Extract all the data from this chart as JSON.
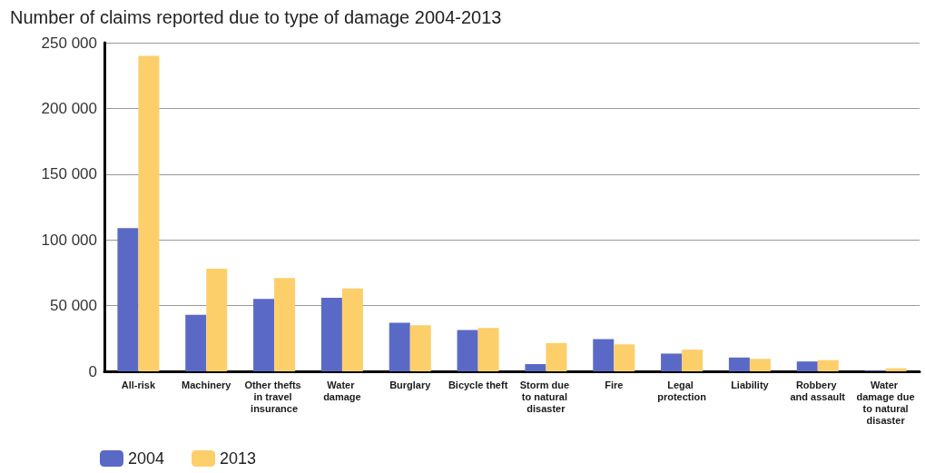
{
  "chart_data": {
    "type": "bar",
    "title": "Number of claims reported due to type of damage 2004-2013",
    "categories": [
      "All-risk",
      "Machinery",
      "Other thefts in travel insurance",
      "Water damage",
      "Burglary",
      "Bicycle theft",
      "Storm due to natural disaster",
      "Fire",
      "Legal protection",
      "Liability",
      "Robbery and assault",
      "Water damage due to natural disaster"
    ],
    "series": [
      {
        "name": "2004",
        "color": "#5b69c6",
        "values": [
          109000,
          43000,
          55000,
          56000,
          37000,
          31500,
          5500,
          24500,
          13500,
          10500,
          7500,
          500
        ]
      },
      {
        "name": "2013",
        "color": "#fccf6b",
        "values": [
          240000,
          78000,
          71000,
          63000,
          35000,
          33000,
          21500,
          20500,
          16500,
          9500,
          8500,
          2300
        ]
      }
    ],
    "ylim": [
      0,
      250000
    ],
    "yticks": [
      {
        "value": 0,
        "label": "0"
      },
      {
        "value": 50000,
        "label": "50 000"
      },
      {
        "value": 100000,
        "label": "100 000"
      },
      {
        "value": 150000,
        "label": "150 000"
      },
      {
        "value": 200000,
        "label": "200 000"
      },
      {
        "value": 250000,
        "label": "250 000"
      }
    ],
    "grid": "y",
    "legend": "bottom left"
  }
}
